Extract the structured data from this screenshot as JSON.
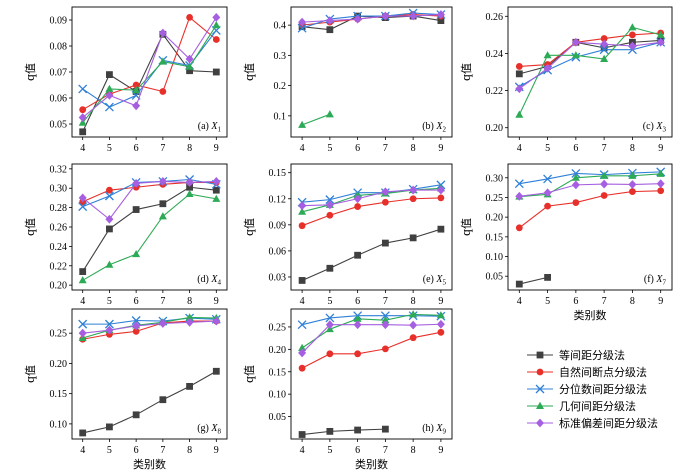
{
  "series_styles": [
    {
      "name": "等间距分级法",
      "color": "#404040",
      "marker": "square"
    },
    {
      "name": "自然间断点分级法",
      "color": "#e8302a",
      "marker": "circle"
    },
    {
      "name": "分位数间距分级法",
      "color": "#2f80d8",
      "marker": "x"
    },
    {
      "name": "几何间距分级法",
      "color": "#2daa56",
      "marker": "triangle"
    },
    {
      "name": "标准偏差间距分级法",
      "color": "#a65fe0",
      "marker": "diamond"
    }
  ],
  "chart_data": [
    {
      "type": "line",
      "panel_label": "(a) X",
      "panel_sub": "1",
      "ylabel": "q值",
      "xlabel": "",
      "x": [
        4,
        5,
        6,
        7,
        8,
        9
      ],
      "xticks": [
        "4",
        "5",
        "6",
        "7",
        "8",
        "9"
      ],
      "ylim": [
        0.045,
        0.095
      ],
      "yticks": [
        0.05,
        0.06,
        0.07,
        0.08,
        0.09
      ],
      "yticklabels": [
        "0.05",
        "0.06",
        "0.07",
        "0.08",
        "0.09"
      ],
      "series": [
        {
          "values": [
            0.047,
            0.069,
            0.0625,
            0.0845,
            0.0705,
            0.07
          ]
        },
        {
          "values": [
            0.0555,
            0.0615,
            0.065,
            0.0625,
            0.091,
            0.0825
          ]
        },
        {
          "values": [
            0.0635,
            0.0565,
            0.061,
            0.0745,
            0.0725,
            0.086
          ]
        },
        {
          "values": [
            0.0505,
            0.0635,
            0.063,
            0.074,
            0.072,
            0.088
          ]
        },
        {
          "values": [
            0.0525,
            0.061,
            0.057,
            0.085,
            0.075,
            0.091
          ]
        }
      ]
    },
    {
      "type": "line",
      "panel_label": "(b) X",
      "panel_sub": "2",
      "ylabel": "q值",
      "xlabel": "",
      "x": [
        4,
        5,
        6,
        7,
        8,
        9
      ],
      "xticks": [
        "4",
        "5",
        "6",
        "7",
        "8",
        "9"
      ],
      "ylim": [
        0.03,
        0.46
      ],
      "yticks": [
        0.1,
        0.2,
        0.3,
        0.4
      ],
      "yticklabels": [
        "0.1",
        "0.2",
        "0.3",
        "0.4"
      ],
      "series": [
        {
          "values": [
            0.395,
            0.385,
            0.43,
            0.425,
            0.43,
            0.415
          ]
        },
        {
          "values": [
            0.4,
            0.41,
            0.42,
            0.43,
            0.435,
            0.43
          ]
        },
        {
          "values": [
            0.39,
            0.42,
            0.43,
            0.43,
            0.44,
            0.435
          ]
        },
        {
          "values": [
            0.07,
            0.105,
            null,
            null,
            null,
            null
          ]
        },
        {
          "values": [
            0.41,
            0.415,
            0.42,
            0.43,
            0.43,
            0.435
          ]
        }
      ]
    },
    {
      "type": "line",
      "panel_label": "(c) X",
      "panel_sub": "3",
      "ylabel": "q值",
      "xlabel": "",
      "x": [
        4,
        5,
        6,
        7,
        8,
        9
      ],
      "xticks": [
        "4",
        "5",
        "6",
        "7",
        "8",
        "9"
      ],
      "ylim": [
        0.195,
        0.265
      ],
      "yticks": [
        0.2,
        0.22,
        0.24,
        0.26
      ],
      "yticklabels": [
        "0.20",
        "0.22",
        "0.24",
        "0.26"
      ],
      "series": [
        {
          "values": [
            0.229,
            0.233,
            0.246,
            0.243,
            0.246,
            0.247
          ]
        },
        {
          "values": [
            0.233,
            0.234,
            0.246,
            0.248,
            0.25,
            0.251
          ]
        },
        {
          "values": [
            0.222,
            0.231,
            0.238,
            0.242,
            0.242,
            0.246
          ]
        },
        {
          "values": [
            0.207,
            0.239,
            0.239,
            0.237,
            0.254,
            0.25
          ]
        },
        {
          "values": [
            0.221,
            0.232,
            0.246,
            0.245,
            0.244,
            0.246
          ]
        }
      ]
    },
    {
      "type": "line",
      "panel_label": "(d) X",
      "panel_sub": "4",
      "ylabel": "q值",
      "xlabel": "",
      "x": [
        4,
        5,
        6,
        7,
        8,
        9
      ],
      "xticks": [
        "4",
        "5",
        "6",
        "7",
        "8",
        "9"
      ],
      "ylim": [
        0.195,
        0.325
      ],
      "yticks": [
        0.2,
        0.22,
        0.24,
        0.26,
        0.28,
        0.3,
        0.32
      ],
      "yticklabels": [
        "0.20",
        "0.22",
        "0.24",
        "0.26",
        "0.28",
        "0.30",
        "0.32"
      ],
      "series": [
        {
          "values": [
            0.214,
            0.258,
            0.278,
            0.284,
            0.301,
            0.298
          ]
        },
        {
          "values": [
            0.286,
            0.298,
            0.301,
            0.304,
            0.306,
            0.306
          ]
        },
        {
          "values": [
            0.281,
            0.292,
            0.306,
            0.307,
            0.309,
            0.304
          ]
        },
        {
          "values": [
            0.205,
            0.221,
            0.232,
            0.271,
            0.294,
            0.289
          ]
        },
        {
          "values": [
            0.29,
            0.268,
            0.305,
            0.307,
            0.306,
            0.307
          ]
        }
      ]
    },
    {
      "type": "line",
      "panel_label": "(e) X",
      "panel_sub": "5",
      "ylabel": "q值",
      "xlabel": "",
      "x": [
        4,
        5,
        6,
        7,
        8,
        9
      ],
      "xticks": [
        "4",
        "5",
        "6",
        "7",
        "8",
        "9"
      ],
      "ylim": [
        0.015,
        0.16
      ],
      "yticks": [
        0.03,
        0.06,
        0.09,
        0.12,
        0.15
      ],
      "yticklabels": [
        "0.03",
        "0.06",
        "0.09",
        "0.12",
        "0.15"
      ],
      "series": [
        {
          "values": [
            0.026,
            0.04,
            0.055,
            0.069,
            0.075,
            0.085
          ]
        },
        {
          "values": [
            0.089,
            0.101,
            0.111,
            0.116,
            0.12,
            0.121
          ]
        },
        {
          "values": [
            0.116,
            0.119,
            0.127,
            0.127,
            0.131,
            0.136
          ]
        },
        {
          "values": [
            0.105,
            0.113,
            0.124,
            0.126,
            0.13,
            0.132
          ]
        },
        {
          "values": [
            0.112,
            0.113,
            0.12,
            0.128,
            0.13,
            0.13
          ]
        }
      ]
    },
    {
      "type": "line",
      "panel_label": "(f) X",
      "panel_sub": "7",
      "ylabel": "q值",
      "xlabel": "类别数",
      "x": [
        4,
        5,
        6,
        7,
        8,
        9
      ],
      "xticks": [
        "4",
        "5",
        "6",
        "7",
        "8",
        "9"
      ],
      "ylim": [
        0.015,
        0.335
      ],
      "yticks": [
        0.05,
        0.1,
        0.15,
        0.2,
        0.25,
        0.3
      ],
      "yticklabels": [
        "0.05",
        "0.10",
        "0.15",
        "0.20",
        "0.25",
        "0.30"
      ],
      "series": [
        {
          "values": [
            0.03,
            0.047,
            null,
            null,
            null,
            null
          ]
        },
        {
          "values": [
            0.173,
            0.228,
            0.237,
            0.255,
            0.265,
            0.267
          ]
        },
        {
          "values": [
            0.285,
            0.297,
            0.311,
            0.308,
            0.312,
            0.315
          ]
        },
        {
          "values": [
            0.252,
            0.258,
            0.3,
            0.305,
            0.305,
            0.31
          ]
        },
        {
          "values": [
            0.253,
            0.262,
            0.282,
            0.284,
            0.283,
            0.285
          ]
        }
      ]
    },
    {
      "type": "line",
      "panel_label": "(g) X",
      "panel_sub": "8",
      "ylabel": "q值",
      "xlabel": "类别数",
      "x": [
        4,
        5,
        6,
        7,
        8,
        9
      ],
      "xticks": [
        "4",
        "5",
        "6",
        "7",
        "8",
        "9"
      ],
      "ylim": [
        0.075,
        0.29
      ],
      "yticks": [
        0.1,
        0.15,
        0.2,
        0.25
      ],
      "yticklabels": [
        "0.10",
        "0.15",
        "0.20",
        "0.25"
      ],
      "series": [
        {
          "values": [
            0.085,
            0.095,
            0.115,
            0.14,
            0.162,
            0.187
          ]
        },
        {
          "values": [
            0.24,
            0.248,
            0.253,
            0.267,
            0.27,
            0.27
          ]
        },
        {
          "values": [
            0.265,
            0.265,
            0.271,
            0.27,
            0.275,
            0.273
          ]
        },
        {
          "values": [
            0.242,
            0.255,
            0.263,
            0.268,
            0.276,
            0.275
          ]
        },
        {
          "values": [
            0.25,
            0.255,
            0.262,
            0.266,
            0.268,
            0.27
          ]
        }
      ]
    },
    {
      "type": "line",
      "panel_label": "(h) X",
      "panel_sub": "9",
      "ylabel": "q值",
      "xlabel": "类别数",
      "x": [
        4,
        5,
        6,
        7,
        8,
        9
      ],
      "xticks": [
        "4",
        "5",
        "6",
        "7",
        "8",
        "9"
      ],
      "ylim": [
        0.0,
        0.29
      ],
      "yticks": [
        0.05,
        0.1,
        0.15,
        0.2,
        0.25
      ],
      "yticklabels": [
        "0.05",
        "0.10",
        "0.15",
        "0.20",
        "0.25"
      ],
      "series": [
        {
          "values": [
            0.01,
            0.017,
            0.02,
            0.022,
            null,
            null
          ]
        },
        {
          "values": [
            0.158,
            0.19,
            0.19,
            0.201,
            0.226,
            0.238
          ]
        },
        {
          "values": [
            0.255,
            0.27,
            0.275,
            0.275,
            0.275,
            0.274
          ]
        },
        {
          "values": [
            0.203,
            0.245,
            0.268,
            0.265,
            0.278,
            0.276
          ]
        },
        {
          "values": [
            0.192,
            0.255,
            0.255,
            0.255,
            0.254,
            0.256
          ]
        }
      ]
    }
  ]
}
